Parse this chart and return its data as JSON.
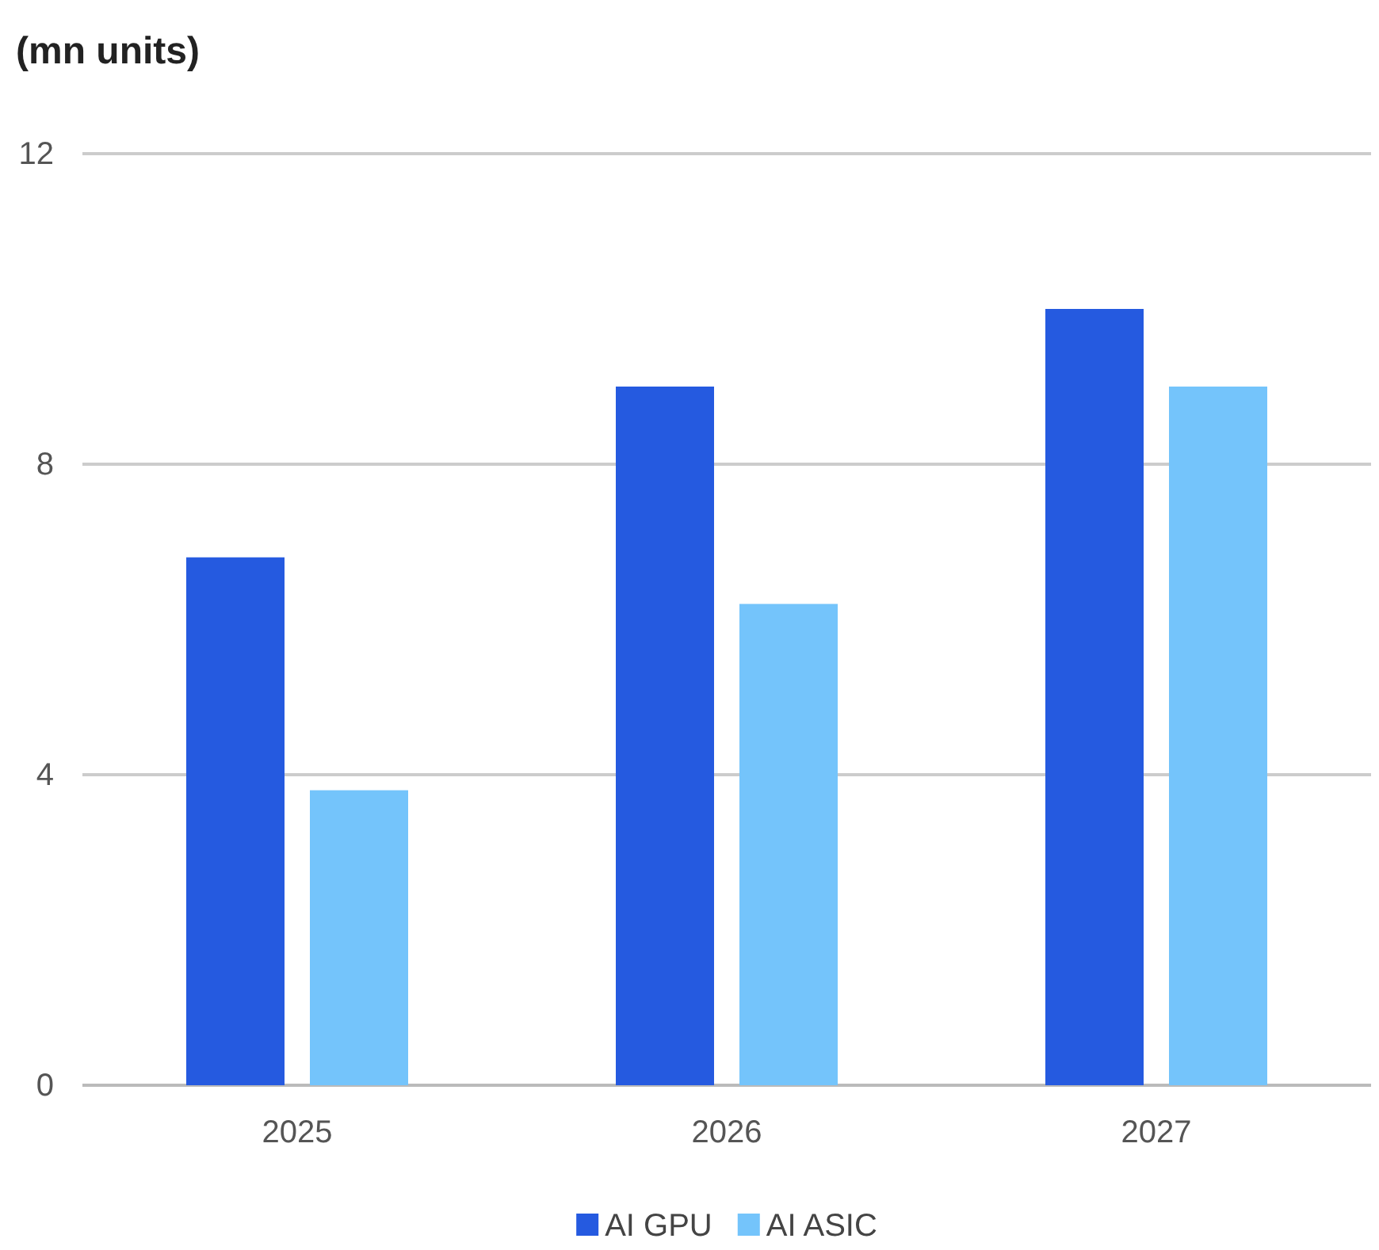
{
  "chart_data": {
    "type": "bar",
    "ylabel": "(mn units)",
    "categories": [
      "2025",
      "2026",
      "2027"
    ],
    "series": [
      {
        "name": "AI GPU",
        "color": "#255ae0",
        "values": [
          6.8,
          9.0,
          10.0
        ]
      },
      {
        "name": "AI ASIC",
        "color": "#74c4fb",
        "values": [
          3.8,
          6.2,
          9.0
        ]
      }
    ],
    "ylim": [
      0,
      12
    ],
    "yticks": [
      0,
      4,
      8,
      12
    ],
    "grid": "y",
    "legend": "bottom"
  }
}
